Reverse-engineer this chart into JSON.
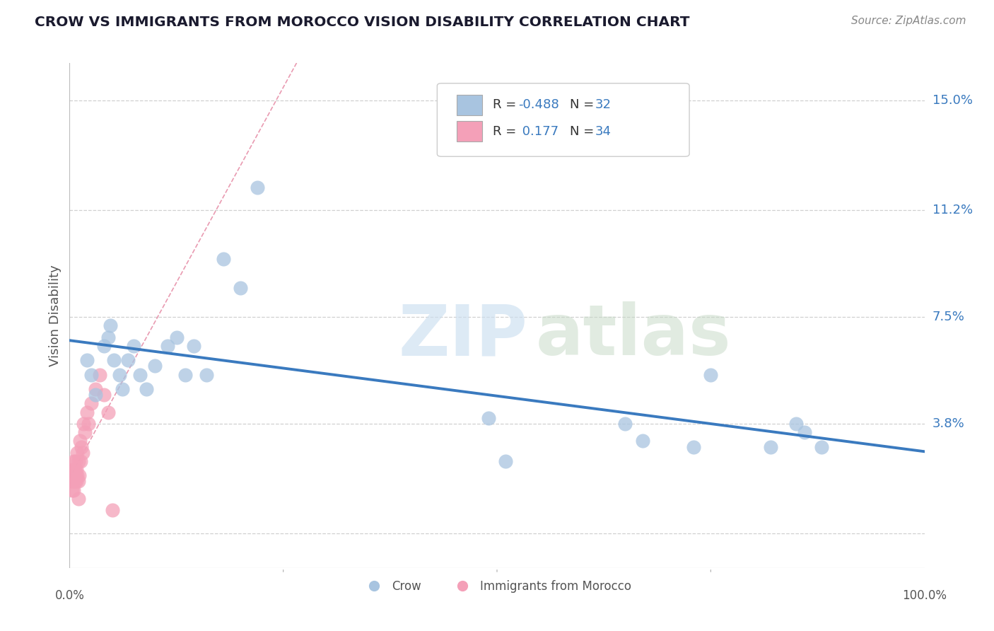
{
  "title": "CROW VS IMMIGRANTS FROM MOROCCO VISION DISABILITY CORRELATION CHART",
  "source": "Source: ZipAtlas.com",
  "ylabel": "Vision Disability",
  "crow_r_val": "-0.488",
  "crow_n_val": "32",
  "immig_r_val": "0.177",
  "immig_n_val": "34",
  "crow_scatter_color": "#a8c4e0",
  "crow_line_color": "#3a7abf",
  "immig_scatter_color": "#f4a0b8",
  "immig_line_color": "#e07090",
  "ref_line_color": "#cccccc",
  "grid_color": "#d0d0d0",
  "background_color": "#ffffff",
  "title_color": "#1a1a2e",
  "source_color": "#888888",
  "label_color": "#555555",
  "axis_tick_color": "#3a7abf",
  "ytick_values": [
    0.0,
    0.038,
    0.075,
    0.112,
    0.15
  ],
  "ytick_labels": [
    "",
    "3.8%",
    "7.5%",
    "11.2%",
    "15.0%"
  ],
  "xlim": [
    0.0,
    1.0
  ],
  "ylim": [
    -0.012,
    0.163
  ],
  "crow_x": [
    0.02,
    0.025,
    0.03,
    0.04,
    0.045,
    0.048,
    0.052,
    0.058,
    0.062,
    0.068,
    0.075,
    0.082,
    0.09,
    0.1,
    0.115,
    0.125,
    0.135,
    0.145,
    0.16,
    0.18,
    0.2,
    0.22,
    0.49,
    0.51,
    0.65,
    0.67,
    0.73,
    0.75,
    0.82,
    0.85,
    0.86,
    0.88
  ],
  "crow_y": [
    0.06,
    0.055,
    0.048,
    0.065,
    0.068,
    0.072,
    0.06,
    0.055,
    0.05,
    0.06,
    0.065,
    0.055,
    0.05,
    0.058,
    0.065,
    0.068,
    0.055,
    0.065,
    0.055,
    0.095,
    0.085,
    0.12,
    0.04,
    0.025,
    0.038,
    0.032,
    0.03,
    0.055,
    0.03,
    0.038,
    0.035,
    0.03
  ],
  "immig_x": [
    0.002,
    0.003,
    0.003,
    0.004,
    0.004,
    0.005,
    0.005,
    0.005,
    0.006,
    0.006,
    0.007,
    0.007,
    0.008,
    0.008,
    0.009,
    0.009,
    0.01,
    0.01,
    0.01,
    0.011,
    0.012,
    0.013,
    0.014,
    0.015,
    0.016,
    0.018,
    0.02,
    0.022,
    0.025,
    0.03,
    0.035,
    0.04,
    0.045,
    0.05
  ],
  "immig_y": [
    0.018,
    0.015,
    0.02,
    0.022,
    0.018,
    0.025,
    0.02,
    0.015,
    0.022,
    0.018,
    0.025,
    0.02,
    0.018,
    0.022,
    0.028,
    0.02,
    0.025,
    0.018,
    0.012,
    0.02,
    0.032,
    0.025,
    0.03,
    0.028,
    0.038,
    0.035,
    0.042,
    0.038,
    0.045,
    0.05,
    0.055,
    0.048,
    0.042,
    0.008
  ]
}
